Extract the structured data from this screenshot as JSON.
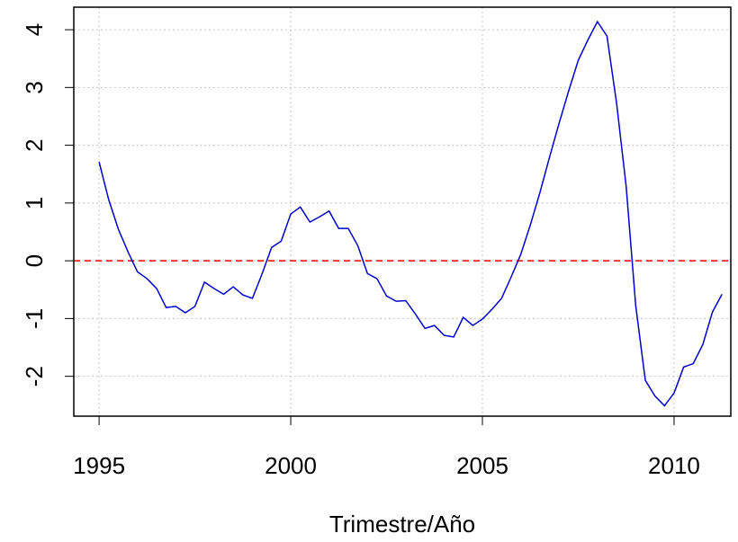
{
  "chart_data": {
    "type": "line",
    "xlabel": "Trimestre/Año",
    "x": [
      1995,
      1995.25,
      1995.5,
      1995.75,
      1996,
      1996.25,
      1996.5,
      1996.75,
      1997,
      1997.25,
      1997.5,
      1997.75,
      1998,
      1998.25,
      1998.5,
      1998.75,
      1999,
      1999.25,
      1999.5,
      1999.75,
      2000,
      2000.25,
      2000.5,
      2000.75,
      2001,
      2001.25,
      2001.5,
      2001.75,
      2002,
      2002.25,
      2002.5,
      2002.75,
      2003,
      2003.25,
      2003.5,
      2003.75,
      2004,
      2004.25,
      2004.5,
      2004.75,
      2005,
      2005.25,
      2005.5,
      2005.75,
      2006,
      2006.25,
      2006.5,
      2006.75,
      2007,
      2007.25,
      2007.5,
      2007.75,
      2008,
      2008.25,
      2008.5,
      2008.75,
      2009,
      2009.25,
      2009.5,
      2009.75,
      2010,
      2010.25,
      2010.5,
      2010.75,
      2011,
      2011.25
    ],
    "series": [
      {
        "color": "#0000cc",
        "values": [
          1.71,
          1.06,
          0.55,
          0.16,
          -0.19,
          -0.31,
          -0.48,
          -0.81,
          -0.79,
          -0.9,
          -0.79,
          -0.37,
          -0.48,
          -0.58,
          -0.45,
          -0.59,
          -0.65,
          -0.23,
          0.23,
          0.34,
          0.81,
          0.93,
          0.67,
          0.76,
          0.86,
          0.56,
          0.56,
          0.26,
          -0.22,
          -0.31,
          -0.61,
          -0.7,
          -0.69,
          -0.92,
          -1.17,
          -1.12,
          -1.29,
          -1.32,
          -0.98,
          -1.12,
          -1.01,
          -0.84,
          -0.65,
          -0.28,
          0.11,
          0.62,
          1.18,
          1.79,
          2.38,
          2.94,
          3.47,
          3.82,
          4.14,
          3.89,
          2.73,
          1.29,
          -0.78,
          -2.07,
          -2.34,
          -2.51,
          -2.29,
          -1.84,
          -1.78,
          -1.45,
          -0.89,
          -0.58
        ]
      }
    ],
    "hline": {
      "value": 0,
      "color": "#ff0000"
    },
    "xlim": [
      1994.34,
      2011.48
    ],
    "xticks": [
      1995,
      2000,
      2005,
      2010
    ],
    "ylim": [
      -2.69,
      4.39
    ],
    "yticks": [
      -2,
      -1,
      0,
      1,
      2,
      3,
      4
    ],
    "grid": true
  }
}
